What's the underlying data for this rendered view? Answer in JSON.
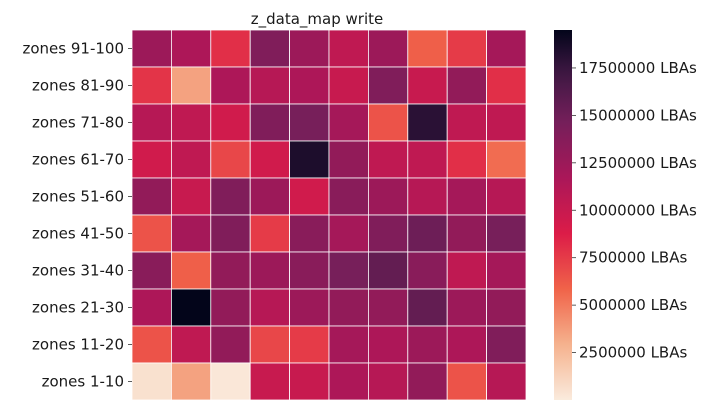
{
  "chart_data": {
    "type": "heatmap",
    "title": "z_data_map write",
    "xlabel": "",
    "ylabel": "",
    "rows": [
      "zones 91-100",
      "zones 81-90",
      "zones 71-80",
      "zones 61-70",
      "zones 51-60",
      "zones 41-50",
      "zones 31-40",
      "zones 21-30",
      "zones 11-20",
      "zones 1-10"
    ],
    "columns": 10,
    "x_tick_labels_visible": false,
    "values": [
      [
        12500000,
        11500000,
        8000000,
        14000000,
        12500000,
        10500000,
        12500000,
        6000000,
        7500000,
        12000000
      ],
      [
        7800000,
        3500000,
        11500000,
        11000000,
        11500000,
        10000000,
        14000000,
        10000000,
        13000000,
        8000000
      ],
      [
        11000000,
        10500000,
        9500000,
        14000000,
        14500000,
        12000000,
        6500000,
        18000000,
        10500000,
        10500000
      ],
      [
        9500000,
        10500000,
        7000000,
        9500000,
        18500000,
        13000000,
        10500000,
        10500000,
        8000000,
        5500000
      ],
      [
        13000000,
        10000000,
        14000000,
        12500000,
        9500000,
        13500000,
        12500000,
        11000000,
        12000000,
        11000000
      ],
      [
        6500000,
        12000000,
        14000000,
        7500000,
        13500000,
        12000000,
        14000000,
        15000000,
        13000000,
        14500000
      ],
      [
        13500000,
        6000000,
        13000000,
        12500000,
        13500000,
        14500000,
        15500000,
        13500000,
        10500000,
        12000000
      ],
      [
        11500000,
        19500000,
        13000000,
        11000000,
        12500000,
        13000000,
        13000000,
        15500000,
        12500000,
        13000000
      ],
      [
        6500000,
        10500000,
        13000000,
        7000000,
        7500000,
        12000000,
        11500000,
        12500000,
        11500000,
        14000000
      ],
      [
        500000,
        3500000,
        200000,
        10000000,
        10000000,
        11500000,
        11000000,
        13000000,
        6500000,
        11000000
      ]
    ],
    "colorbar": {
      "min": 0,
      "max": 19500000,
      "ticks": [
        2500000,
        5000000,
        7500000,
        10000000,
        12500000,
        15000000,
        17500000
      ],
      "tick_labels": [
        "2500000 LBAs",
        "5000000 LBAs",
        "7500000 LBAs",
        "10000000 LBAs",
        "12500000 LBAs",
        "15000000 LBAs",
        "17500000 LBAs"
      ],
      "colormap": "rocket_r"
    },
    "grid": "white cell borders",
    "legend": "colorbar-right"
  }
}
